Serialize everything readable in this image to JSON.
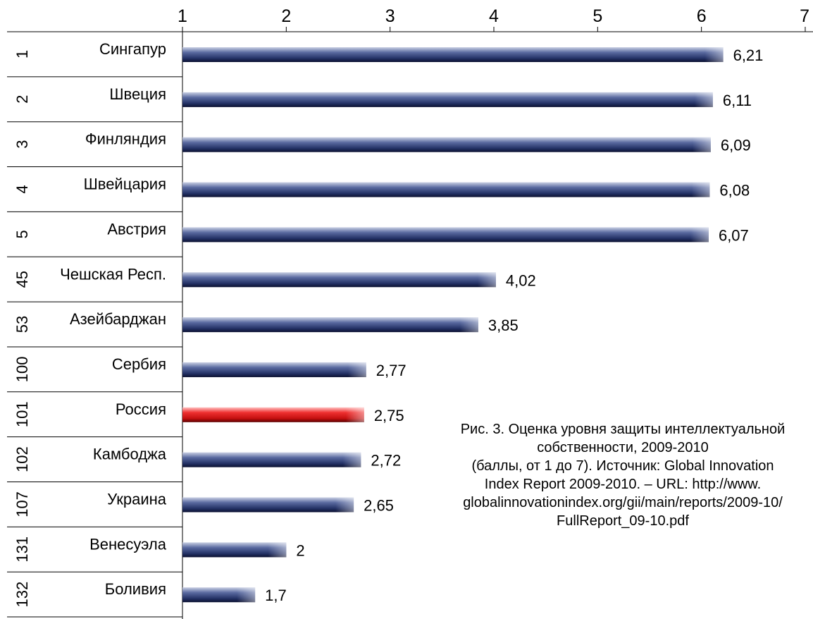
{
  "chart_data": {
    "type": "bar",
    "orientation": "horizontal",
    "xlim": [
      1,
      7
    ],
    "x_ticks": [
      "1",
      "2",
      "3",
      "4",
      "5",
      "6",
      "7"
    ],
    "grid": false,
    "legend": "none",
    "categories": [
      "Сингапур",
      "Швеция",
      "Финляндия",
      "Швейцария",
      "Австрия",
      "Чешская Респ.",
      "Азейбарджан",
      "Сербия",
      "Россия",
      "Камбоджа",
      "Украина",
      "Венесуэла",
      "Боливия"
    ],
    "ranks": [
      "1",
      "2",
      "3",
      "4",
      "5",
      "45",
      "53",
      "100",
      "101",
      "102",
      "107",
      "131",
      "132"
    ],
    "values": [
      6.21,
      6.11,
      6.09,
      6.08,
      6.07,
      4.02,
      3.85,
      2.77,
      2.75,
      2.72,
      2.65,
      2,
      1.7
    ],
    "value_labels": [
      "6,21",
      "6,11",
      "6,09",
      "6,08",
      "6,07",
      "4,02",
      "3,85",
      "2,77",
      "2,75",
      "2,72",
      "2,65",
      "2",
      "1,7"
    ],
    "highlight": "Россия",
    "colors": {
      "bar": "#2b3a6e",
      "highlight": "#d42020"
    },
    "caption": "Рис. 3. Оценка уровня защиты интеллектуальной\nсобственности, 2009-2010\n(баллы, от 1 до 7). Источник: Global Innovation\nIndex Report 2009-2010. – URL: http://www.\nglobalinnovationindex.org/gii/main/reports/2009-10/\nFullReport_09-10.pdf"
  }
}
